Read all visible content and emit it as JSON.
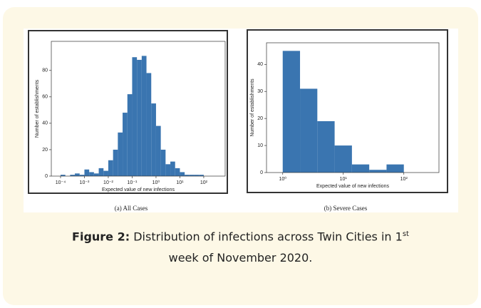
{
  "chart_data": [
    {
      "type": "histogram",
      "subcaption": "(a) All Cases",
      "xlabel": "Expected value of new infections",
      "ylabel": "Number of establishments",
      "color": "#3a75b0",
      "xscale": "log",
      "bins": [
        6.31e-05,
        0.0001,
        0.0001585,
        0.0002512,
        0.0003981,
        0.000631,
        0.001,
        0.001585,
        0.002512,
        0.003981,
        0.00631,
        0.01,
        0.01585,
        0.02512,
        0.03981,
        0.0631,
        0.1,
        0.1585,
        0.2512,
        0.3981,
        0.631,
        1,
        1.585,
        2.512,
        3.981,
        6.31,
        10,
        15.85,
        25.12,
        39.81,
        63.1,
        100,
        158.5
      ],
      "values": [
        0,
        1,
        0,
        1,
        2,
        1,
        5,
        3,
        2,
        6,
        4,
        12,
        20,
        33,
        48,
        62,
        90,
        88,
        91,
        78,
        55,
        38,
        20,
        9,
        11,
        6,
        3,
        1,
        1,
        1,
        1,
        0
      ],
      "xlim": [
        4.1e-05,
        790
      ],
      "ylim": [
        0,
        102
      ],
      "xticks": [
        {
          "value": 0.0001,
          "label": "10⁻⁴"
        },
        {
          "value": 0.001,
          "label": "10⁻³"
        },
        {
          "value": 0.01,
          "label": "10⁻²"
        },
        {
          "value": 0.1,
          "label": "10⁻¹"
        },
        {
          "value": 1,
          "label": "10⁰"
        },
        {
          "value": 10,
          "label": "10¹"
        },
        {
          "value": 100,
          "label": "10²"
        }
      ],
      "yticks": [
        0,
        20,
        40,
        60,
        80
      ]
    },
    {
      "type": "histogram",
      "subcaption": "(b) Severe Cases",
      "xlabel": "Expected value of new infections",
      "ylabel": "Number of establishments",
      "color": "#3a75b0",
      "xscale": "log",
      "bins": [
        1,
        1.931,
        3.728,
        7.197,
        13.895,
        26.827,
        51.795,
        100
      ],
      "values": [
        45,
        31,
        19,
        10,
        3,
        1,
        3
      ],
      "xlim": [
        0.54,
        380
      ],
      "ylim": [
        0,
        48
      ],
      "xticks": [
        {
          "value": 1,
          "label": "10⁰"
        },
        {
          "value": 10,
          "label": "10¹"
        },
        {
          "value": 100,
          "label": "10²"
        }
      ],
      "yticks": [
        0,
        10,
        20,
        30,
        40
      ]
    }
  ],
  "caption": {
    "label": "Figure 2:",
    "text": "Distribution of infections across Twin Cities in 1",
    "superscript": "st",
    "text_end": "week of November 2020."
  }
}
